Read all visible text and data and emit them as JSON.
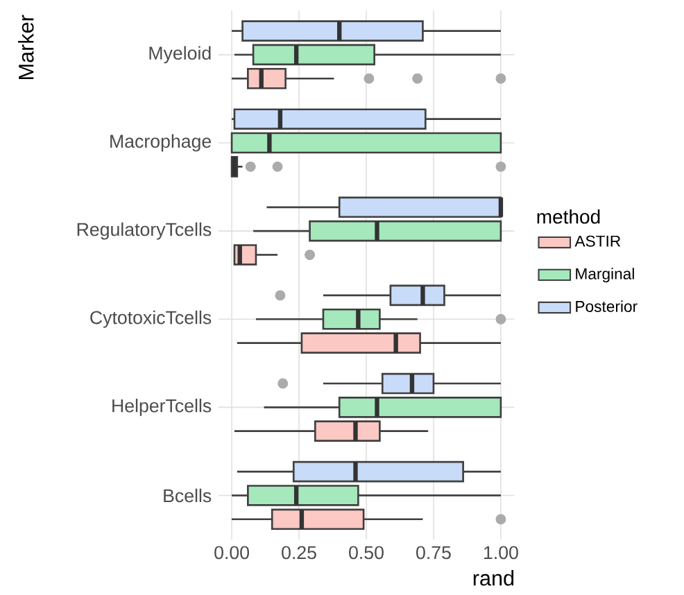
{
  "chart_data": {
    "type": "box",
    "orientation": "horizontal",
    "xlabel": "rand",
    "ylabel": "Marker",
    "legend_title": "method",
    "legend": "right",
    "grid": true,
    "categories": [
      "Myeloid",
      "Macrophage",
      "RegulatoryTcells",
      "CytotoxicTcells",
      "HelperTcells",
      "Bcells"
    ],
    "xlim": [
      -0.05,
      1.05
    ],
    "xticks": [
      {
        "value": 0,
        "label": "0.00"
      },
      {
        "value": 0.25,
        "label": "0.25"
      },
      {
        "value": 0.5,
        "label": "0.50"
      },
      {
        "value": 0.75,
        "label": "0.75"
      },
      {
        "value": 1,
        "label": "1.00"
      }
    ],
    "series": [
      {
        "name": "ASTIR",
        "color": "#fcc8c4",
        "boxes": [
          {
            "low": 0.0,
            "q1": 0.06,
            "median": 0.11,
            "q3": 0.2,
            "high": 0.38,
            "outliers": [
              0.51,
              0.69,
              1.0
            ]
          },
          {
            "low": 0.0,
            "q1": 0.0,
            "median": 0.01,
            "q3": 0.02,
            "high": 0.04,
            "outliers": [
              0.07,
              0.17,
              1.0
            ]
          },
          {
            "low": 0.01,
            "q1": 0.01,
            "median": 0.03,
            "q3": 0.09,
            "high": 0.17,
            "outliers": [
              0.29
            ]
          },
          {
            "low": 0.02,
            "q1": 0.26,
            "median": 0.61,
            "q3": 0.7,
            "high": 1.0
          },
          {
            "low": 0.01,
            "q1": 0.31,
            "median": 0.46,
            "q3": 0.55,
            "high": 0.73
          },
          {
            "low": 0.0,
            "q1": 0.15,
            "median": 0.26,
            "q3": 0.49,
            "high": 0.71,
            "outliers": [
              1.0
            ]
          }
        ]
      },
      {
        "name": "Marginal",
        "color": "#a4e8bc",
        "boxes": [
          {
            "low": 0.01,
            "q1": 0.08,
            "median": 0.24,
            "q3": 0.53,
            "high": 1.0
          },
          {
            "low": 0.0,
            "q1": 0.0,
            "median": 0.14,
            "q3": 1.0,
            "high": 1.0
          },
          {
            "low": 0.08,
            "q1": 0.29,
            "median": 0.54,
            "q3": 1.0,
            "high": 1.0
          },
          {
            "low": 0.09,
            "q1": 0.34,
            "median": 0.47,
            "q3": 0.55,
            "high": 0.69,
            "outliers": [
              1.0
            ]
          },
          {
            "low": 0.12,
            "q1": 0.4,
            "median": 0.54,
            "q3": 1.0,
            "high": 1.0
          },
          {
            "low": 0.0,
            "q1": 0.06,
            "median": 0.24,
            "q3": 0.47,
            "high": 1.0
          }
        ]
      },
      {
        "name": "Posterior",
        "color": "#c8dbf8",
        "boxes": [
          {
            "low": 0.0,
            "q1": 0.04,
            "median": 0.4,
            "q3": 0.71,
            "high": 1.0
          },
          {
            "low": 0.0,
            "q1": 0.01,
            "median": 0.18,
            "q3": 0.72,
            "high": 1.0
          },
          {
            "low": 0.13,
            "q1": 0.4,
            "median": 1.0,
            "q3": 1.0,
            "high": 1.0
          },
          {
            "low": 0.34,
            "q1": 0.59,
            "median": 0.71,
            "q3": 0.79,
            "high": 1.0,
            "outliers": [
              0.18
            ]
          },
          {
            "low": 0.34,
            "q1": 0.56,
            "median": 0.67,
            "q3": 0.75,
            "high": 1.0,
            "outliers": [
              0.19
            ]
          },
          {
            "low": 0.02,
            "q1": 0.23,
            "median": 0.46,
            "q3": 0.86,
            "high": 1.0
          }
        ]
      }
    ]
  }
}
